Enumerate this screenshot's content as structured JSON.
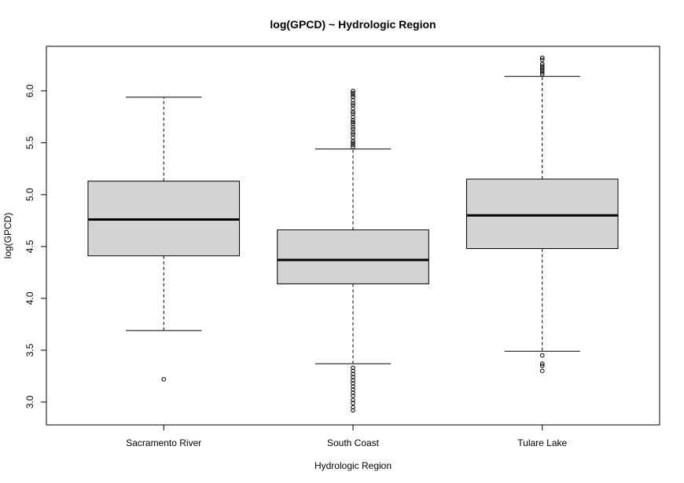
{
  "chart_data": {
    "type": "boxplot",
    "title": "log(GPCD) ~ Hydrologic Region",
    "xlabel": "Hydrologic Region",
    "ylabel": "log(GPCD)",
    "ylim": [
      2.78,
      6.43
    ],
    "yticks": [
      3.0,
      3.5,
      4.0,
      4.5,
      5.0,
      5.5,
      6.0
    ],
    "ytick_labels": [
      "3.0",
      "3.5",
      "4.0",
      "4.5",
      "5.0",
      "5.5",
      "6.0"
    ],
    "categories": [
      "Sacramento River",
      "South Coast",
      "Tulare Lake"
    ],
    "fill_color": "#d3d3d3",
    "boxes": [
      {
        "category": "Sacramento River",
        "whisker_low": 3.69,
        "q1": 4.41,
        "median": 4.76,
        "q3": 5.13,
        "whisker_high": 5.94,
        "outliers": [
          3.22
        ]
      },
      {
        "category": "South Coast",
        "whisker_low": 3.37,
        "q1": 4.14,
        "median": 4.37,
        "q3": 4.66,
        "whisker_high": 5.44,
        "outliers": [
          5.46,
          5.48,
          5.5,
          5.52,
          5.55,
          5.58,
          5.6,
          5.63,
          5.65,
          5.68,
          5.7,
          5.72,
          5.75,
          5.78,
          5.8,
          5.83,
          5.86,
          5.88,
          5.91,
          5.94,
          5.96,
          5.98,
          6.0,
          3.33,
          3.3,
          3.27,
          3.24,
          3.21,
          3.18,
          3.15,
          3.12,
          3.09,
          3.06,
          3.02,
          2.99,
          2.95,
          2.92
        ]
      },
      {
        "category": "Tulare Lake",
        "whisker_low": 3.49,
        "q1": 4.48,
        "median": 4.8,
        "q3": 5.15,
        "whisker_high": 6.14,
        "outliers": [
          6.16,
          6.18,
          6.2,
          6.22,
          6.24,
          6.26,
          6.3,
          6.32,
          3.45,
          3.37,
          3.35,
          3.3
        ]
      }
    ]
  }
}
